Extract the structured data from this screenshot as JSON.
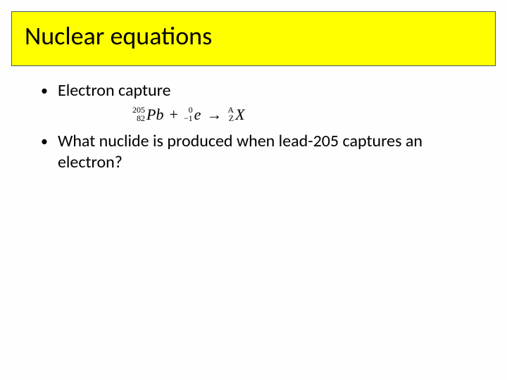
{
  "colors": {
    "title_bg": "#ffff00",
    "title_border": "#445a78",
    "text": "#000000",
    "slide_bg": "#ffffff"
  },
  "title": "Nuclear equations",
  "bullets": [
    {
      "text": "Electron capture"
    },
    {
      "text": "What nuclide is produced when lead-205 captures an electron?"
    }
  ],
  "equation": {
    "lhs1": {
      "mass": "205",
      "atomic": "82",
      "symbol": "Pb"
    },
    "op1": "+",
    "lhs2": {
      "mass": "0",
      "atomic": "−1",
      "symbol": "e"
    },
    "arrow": "→",
    "rhs": {
      "mass": "A",
      "atomic": "Z",
      "symbol": "X"
    }
  },
  "typography": {
    "title_fontsize": 36,
    "bullet_fontsize": 24,
    "equation_fontsize": 22,
    "presup_fontsize": 12
  }
}
